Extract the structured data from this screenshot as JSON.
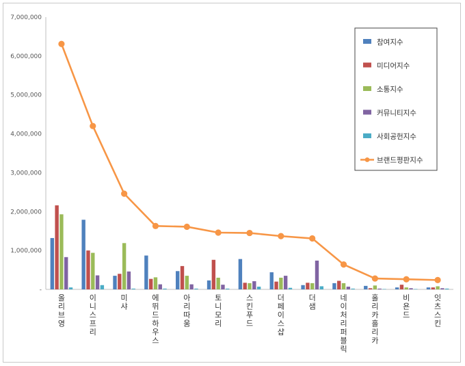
{
  "chart_data": {
    "type": "bar",
    "title": "",
    "xlabel": "",
    "ylabel": "",
    "ylim": [
      0,
      7000000
    ],
    "yticks": [
      0,
      1000000,
      2000000,
      3000000,
      4000000,
      5000000,
      6000000,
      7000000
    ],
    "ytick_labels": [
      "-",
      "1,000,000",
      "2,000,000",
      "3,000,000",
      "4,000,000",
      "5,000,000",
      "6,000,000",
      "7,000,000"
    ],
    "grid": false,
    "legend_position": "top-right",
    "categories": [
      "올리브영",
      "이니스프리",
      "미샤",
      "에뛰드하우스",
      "아리따움",
      "토니모리",
      "스킨푸드",
      "더페이스샵",
      "더샘",
      "네이처리퍼블릭",
      "홀리카홀리카",
      "비욘드",
      "잇츠스킨"
    ],
    "series": [
      {
        "name": "참여지수",
        "kind": "bar",
        "color": "#4f81bd",
        "values": [
          1320000,
          1790000,
          350000,
          870000,
          470000,
          230000,
          780000,
          440000,
          110000,
          160000,
          90000,
          50000,
          50000
        ]
      },
      {
        "name": "미디어지수",
        "kind": "bar",
        "color": "#c0504d",
        "values": [
          2160000,
          1000000,
          400000,
          270000,
          600000,
          760000,
          170000,
          200000,
          170000,
          220000,
          30000,
          120000,
          50000
        ]
      },
      {
        "name": "소통지수",
        "kind": "bar",
        "color": "#9bbb59",
        "values": [
          1930000,
          940000,
          1190000,
          310000,
          350000,
          300000,
          160000,
          300000,
          160000,
          160000,
          100000,
          50000,
          80000
        ]
      },
      {
        "name": "커뮤니티지수",
        "kind": "bar",
        "color": "#8064a2",
        "values": [
          830000,
          360000,
          460000,
          130000,
          130000,
          120000,
          210000,
          350000,
          740000,
          70000,
          20000,
          30000,
          30000
        ]
      },
      {
        "name": "사회공헌지수",
        "kind": "bar",
        "color": "#4bacc6",
        "values": [
          50000,
          110000,
          20000,
          20000,
          20000,
          20000,
          70000,
          40000,
          80000,
          20000,
          10000,
          10000,
          20000
        ]
      },
      {
        "name": "브랜드평판지수",
        "kind": "line",
        "color": "#f79646",
        "values": [
          6310000,
          4200000,
          2460000,
          1630000,
          1610000,
          1460000,
          1450000,
          1370000,
          1310000,
          640000,
          280000,
          260000,
          240000
        ]
      }
    ]
  }
}
